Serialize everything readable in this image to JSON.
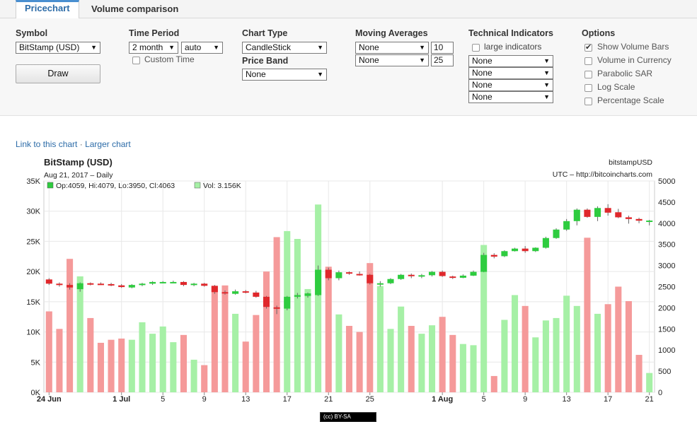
{
  "tabs": [
    {
      "label": "Pricechart",
      "active": true
    },
    {
      "label": "Volume comparison",
      "active": false
    }
  ],
  "controls": {
    "symbol": {
      "title": "Symbol",
      "value": "BitStamp (USD)",
      "draw_label": "Draw"
    },
    "time_period": {
      "title": "Time Period",
      "period": "2 month",
      "resolution": "auto",
      "custom_time_label": "Custom Time",
      "custom_time_checked": false
    },
    "chart_type": {
      "title": "Chart Type",
      "value": "CandleStick"
    },
    "price_band": {
      "title": "Price Band",
      "value": "None"
    },
    "moving_averages": {
      "title": "Moving Averages",
      "rows": [
        {
          "type": "None",
          "period": "10"
        },
        {
          "type": "None",
          "period": "25"
        }
      ]
    },
    "technical_indicators": {
      "title": "Technical Indicators",
      "large_label": "large indicators",
      "large_checked": false,
      "selects": [
        "None",
        "None",
        "None",
        "None"
      ]
    },
    "options": {
      "title": "Options",
      "items": [
        {
          "label": "Show Volume Bars",
          "checked": true
        },
        {
          "label": "Volume in Currency",
          "checked": false
        },
        {
          "label": "Parabolic SAR",
          "checked": false
        },
        {
          "label": "Log Scale",
          "checked": false
        },
        {
          "label": "Percentage Scale",
          "checked": false
        }
      ]
    }
  },
  "links": {
    "link_chart": "Link to this chart",
    "separator": "·",
    "larger_chart": "Larger chart"
  },
  "license_badge": "(cc) BY-SA",
  "colors": {
    "up_candle": "#2ecc3f",
    "down_candle": "#e0282c",
    "up_volume": "#a6f0a6",
    "down_volume": "#f59a9a",
    "grid": "#e8e8e8",
    "tab_accent": "#4a8fd0",
    "link": "#2d6ca8"
  },
  "chart_data": {
    "type": "candlestick",
    "title": "BitStamp (USD)",
    "subtitle": "Aug 21, 2017 – Daily",
    "right_title": "bitstampUSD",
    "right_subtitle": "UTC – http://bitcoincharts.com",
    "info_ohlc": "Op:4059, Hi:4079, Lo:3950, Cl:4063",
    "info_vol": "Vol: 3.156K",
    "left_axis": {
      "min": 0,
      "max": 35000,
      "ticks": [
        "0K",
        "5K",
        "10K",
        "15K",
        "20K",
        "25K",
        "30K",
        "35K"
      ]
    },
    "right_axis": {
      "min": 0,
      "max": 5000,
      "ticks": [
        "0",
        "500",
        "1000",
        "1500",
        "2000",
        "2500",
        "3000",
        "3500",
        "4000",
        "4500",
        "5000"
      ]
    },
    "x_labels": [
      {
        "index": 0,
        "label": "24 Jun",
        "bold": true
      },
      {
        "index": 7,
        "label": "1 Jul",
        "bold": true
      },
      {
        "index": 11,
        "label": "5"
      },
      {
        "index": 15,
        "label": "9"
      },
      {
        "index": 19,
        "label": "13"
      },
      {
        "index": 23,
        "label": "17"
      },
      {
        "index": 27,
        "label": "21"
      },
      {
        "index": 31,
        "label": "25"
      },
      {
        "index": 38,
        "label": "1 Aug",
        "bold": true
      },
      {
        "index": 42,
        "label": "5"
      },
      {
        "index": 46,
        "label": "9"
      },
      {
        "index": 50,
        "label": "13"
      },
      {
        "index": 54,
        "label": "17"
      },
      {
        "index": 58,
        "label": "21"
      }
    ],
    "candles": [
      {
        "o": 2670,
        "h": 2700,
        "l": 2540,
        "c": 2570,
        "v": 13400
      },
      {
        "o": 2570,
        "h": 2600,
        "l": 2500,
        "c": 2540,
        "v": 10500
      },
      {
        "o": 2540,
        "h": 2580,
        "l": 2430,
        "c": 2480,
        "v": 22100
      },
      {
        "o": 2440,
        "h": 2600,
        "l": 2380,
        "c": 2580,
        "v": 19200
      },
      {
        "o": 2580,
        "h": 2600,
        "l": 2530,
        "c": 2570,
        "v": 12300
      },
      {
        "o": 2570,
        "h": 2600,
        "l": 2540,
        "c": 2560,
        "v": 8200
      },
      {
        "o": 2560,
        "h": 2590,
        "l": 2510,
        "c": 2530,
        "v": 8700
      },
      {
        "o": 2530,
        "h": 2560,
        "l": 2470,
        "c": 2490,
        "v": 8900
      },
      {
        "o": 2480,
        "h": 2560,
        "l": 2460,
        "c": 2540,
        "v": 8700
      },
      {
        "o": 2540,
        "h": 2590,
        "l": 2510,
        "c": 2570,
        "v": 11600
      },
      {
        "o": 2570,
        "h": 2630,
        "l": 2540,
        "c": 2610,
        "v": 9700
      },
      {
        "o": 2610,
        "h": 2630,
        "l": 2590,
        "c": 2610,
        "v": 10900
      },
      {
        "o": 2610,
        "h": 2640,
        "l": 2590,
        "c": 2610,
        "v": 8300
      },
      {
        "o": 2610,
        "h": 2630,
        "l": 2510,
        "c": 2540,
        "v": 9500
      },
      {
        "o": 2540,
        "h": 2590,
        "l": 2510,
        "c": 2570,
        "v": 5400
      },
      {
        "o": 2570,
        "h": 2590,
        "l": 2500,
        "c": 2520,
        "v": 4500
      },
      {
        "o": 2520,
        "h": 2540,
        "l": 2330,
        "c": 2370,
        "v": 17500
      },
      {
        "o": 2370,
        "h": 2410,
        "l": 2310,
        "c": 2350,
        "v": 17700
      },
      {
        "o": 2330,
        "h": 2430,
        "l": 2310,
        "c": 2390,
        "v": 13000
      },
      {
        "o": 2390,
        "h": 2420,
        "l": 2340,
        "c": 2360,
        "v": 8400
      },
      {
        "o": 2360,
        "h": 2400,
        "l": 2240,
        "c": 2260,
        "v": 12800
      },
      {
        "o": 2260,
        "h": 2280,
        "l": 1980,
        "c": 2020,
        "v": 20000
      },
      {
        "o": 2010,
        "h": 2050,
        "l": 1850,
        "c": 1990,
        "v": 25700
      },
      {
        "o": 1980,
        "h": 2280,
        "l": 1940,
        "c": 2260,
        "v": 26700
      },
      {
        "o": 2260,
        "h": 2350,
        "l": 2220,
        "c": 2300,
        "v": 25400
      },
      {
        "o": 2280,
        "h": 2360,
        "l": 2240,
        "c": 2340,
        "v": 17100
      },
      {
        "o": 2300,
        "h": 3000,
        "l": 2280,
        "c": 2900,
        "v": 31100
      },
      {
        "o": 2900,
        "h": 2950,
        "l": 2650,
        "c": 2700,
        "v": 20800
      },
      {
        "o": 2700,
        "h": 2880,
        "l": 2650,
        "c": 2840,
        "v": 12900
      },
      {
        "o": 2840,
        "h": 2860,
        "l": 2780,
        "c": 2810,
        "v": 11000
      },
      {
        "o": 2800,
        "h": 2860,
        "l": 2760,
        "c": 2780,
        "v": 10000
      },
      {
        "o": 2780,
        "h": 2800,
        "l": 2550,
        "c": 2580,
        "v": 21400
      },
      {
        "o": 2560,
        "h": 2630,
        "l": 2500,
        "c": 2580,
        "v": 17600
      },
      {
        "o": 2580,
        "h": 2700,
        "l": 2560,
        "c": 2680,
        "v": 10500
      },
      {
        "o": 2680,
        "h": 2800,
        "l": 2660,
        "c": 2780,
        "v": 14200
      },
      {
        "o": 2780,
        "h": 2810,
        "l": 2700,
        "c": 2760,
        "v": 11000
      },
      {
        "o": 2740,
        "h": 2800,
        "l": 2700,
        "c": 2770,
        "v": 9700
      },
      {
        "o": 2770,
        "h": 2870,
        "l": 2740,
        "c": 2850,
        "v": 11100
      },
      {
        "o": 2850,
        "h": 2880,
        "l": 2730,
        "c": 2750,
        "v": 12500
      },
      {
        "o": 2740,
        "h": 2760,
        "l": 2680,
        "c": 2730,
        "v": 9500
      },
      {
        "o": 2710,
        "h": 2790,
        "l": 2700,
        "c": 2760,
        "v": 8000
      },
      {
        "o": 2760,
        "h": 2880,
        "l": 2750,
        "c": 2850,
        "v": 7800
      },
      {
        "o": 2850,
        "h": 3300,
        "l": 2840,
        "c": 3250,
        "v": 24400
      },
      {
        "o": 3250,
        "h": 3290,
        "l": 3170,
        "c": 3210,
        "v": 2700
      },
      {
        "o": 3220,
        "h": 3360,
        "l": 3200,
        "c": 3340,
        "v": 12000
      },
      {
        "o": 3340,
        "h": 3420,
        "l": 3330,
        "c": 3400,
        "v": 16100
      },
      {
        "o": 3400,
        "h": 3460,
        "l": 3300,
        "c": 3340,
        "v": 14300
      },
      {
        "o": 3340,
        "h": 3430,
        "l": 3320,
        "c": 3420,
        "v": 9100
      },
      {
        "o": 3420,
        "h": 3680,
        "l": 3400,
        "c": 3650,
        "v": 11900
      },
      {
        "o": 3650,
        "h": 3880,
        "l": 3630,
        "c": 3850,
        "v": 12300
      },
      {
        "o": 3850,
        "h": 4100,
        "l": 3820,
        "c": 4050,
        "v": 16000
      },
      {
        "o": 4050,
        "h": 4350,
        "l": 3950,
        "c": 4320,
        "v": 14300
      },
      {
        "o": 4320,
        "h": 4350,
        "l": 4130,
        "c": 4150,
        "v": 25600
      },
      {
        "o": 4150,
        "h": 4400,
        "l": 4050,
        "c": 4360,
        "v": 13000
      },
      {
        "o": 4360,
        "h": 4450,
        "l": 4180,
        "c": 4250,
        "v": 14600
      },
      {
        "o": 4260,
        "h": 4340,
        "l": 4120,
        "c": 4140,
        "v": 17500
      },
      {
        "o": 4140,
        "h": 4180,
        "l": 3990,
        "c": 4100,
        "v": 15100
      },
      {
        "o": 4100,
        "h": 4130,
        "l": 4000,
        "c": 4060,
        "v": 6200
      },
      {
        "o": 4059,
        "h": 4079,
        "l": 3950,
        "c": 4063,
        "v": 3200
      }
    ]
  }
}
